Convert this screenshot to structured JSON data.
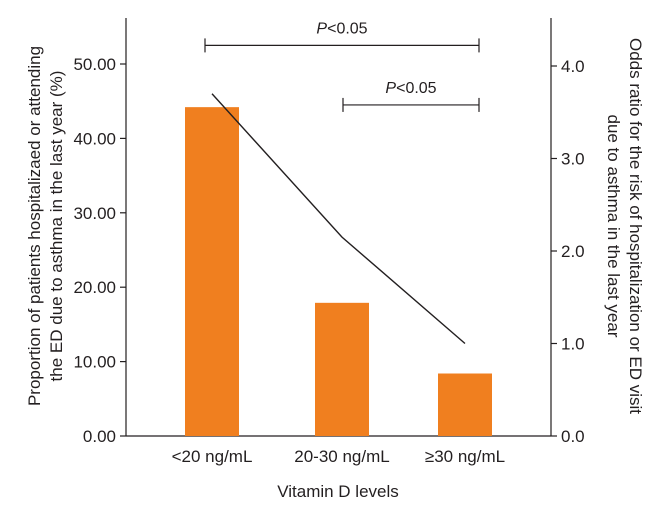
{
  "chart_data": {
    "type": "bar",
    "categories": [
      "<20 ng/mL",
      "20-30 ng/mL",
      "≥30 ng/mL"
    ],
    "series": [
      {
        "name": "Proportion of patients hospitalized or attending the ED",
        "kind": "bar",
        "axis": "left",
        "color": "#f07f1f",
        "values": [
          44.2,
          17.9,
          8.4
        ]
      },
      {
        "name": "Odds ratio",
        "kind": "line",
        "axis": "right",
        "color": "#231f20",
        "values": [
          3.7,
          2.15,
          1.0
        ]
      }
    ],
    "xlabel": "Vitamin D levels",
    "ylabel_left": [
      "Proportion of patients hospitalizaed or attending",
      "the ED due to asthma in the last year (%)"
    ],
    "ylabel_right": [
      "Odds ratio for the risk of hospitalization or ED visit",
      "due to asthma in the last year"
    ],
    "ylim_left": [
      0,
      55
    ],
    "ylim_right": [
      0,
      4.4
    ],
    "left_ticks": [
      "0.00",
      "10.00",
      "20.00",
      "30.00",
      "40.00",
      "50.00"
    ],
    "left_tick_values": [
      0,
      10,
      20,
      30,
      40,
      50
    ],
    "right_ticks": [
      "0.0",
      "1.0",
      "2.0",
      "3.0",
      "4.0"
    ],
    "right_tick_values": [
      0,
      1,
      2,
      3,
      4
    ],
    "annotations": [
      {
        "from": 0,
        "to": 2,
        "label_italic": "P",
        "label_rest": "<0.05",
        "level": 52.5
      },
      {
        "from": 1,
        "to": 2,
        "label_italic": "P",
        "label_rest": "<0.05",
        "level": 44.5
      }
    ]
  }
}
